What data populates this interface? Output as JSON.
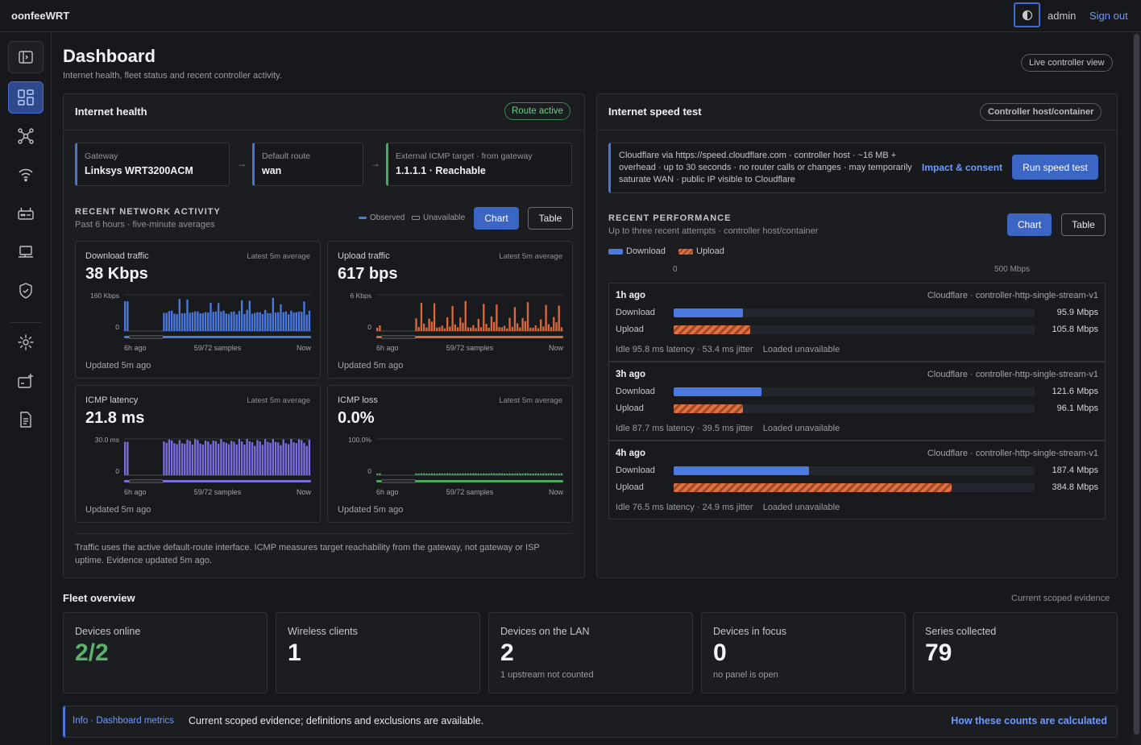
{
  "app": {
    "brand": "oonfeeWRT",
    "user": "admin",
    "sign_out": "Sign out"
  },
  "sidebar": {
    "items": [
      {
        "icon": "sidebar-collapse-icon"
      },
      {
        "icon": "dashboard-icon",
        "active": true
      },
      {
        "icon": "topology-icon"
      },
      {
        "icon": "wifi-icon"
      },
      {
        "icon": "router-icon"
      },
      {
        "icon": "laptop-icon"
      },
      {
        "icon": "shield-icon"
      },
      {
        "icon": "settings-icon"
      },
      {
        "icon": "add-device-icon"
      },
      {
        "icon": "document-icon"
      }
    ]
  },
  "page": {
    "title": "Dashboard",
    "subtitle": "Internet health, fleet status and recent controller activity.",
    "live_view": "Live controller view"
  },
  "health": {
    "title": "Internet health",
    "status": "Route active",
    "chips": [
      {
        "label": "Gateway",
        "value": "Linksys WRT3200ACM"
      },
      {
        "label": "Default route",
        "value": "wan"
      },
      {
        "label": "External ICMP target · from gateway",
        "value": "1.1.1.1 · Reachable"
      }
    ],
    "activity_title": "RECENT NETWORK ACTIVITY",
    "activity_sub": "Past 6 hours · five-minute averages",
    "legend_observed": "Observed",
    "legend_unavailable": "Unavailable",
    "chart_btn": "Chart",
    "table_btn": "Table",
    "footnote": "Traffic uses the active default-route interface. ICMP measures target reachability from the gateway, not gateway or ISP uptime. Evidence updated 5m ago."
  },
  "metric_cards": [
    {
      "title": "Download traffic",
      "right": "Latest 5m average",
      "value": "38 Kbps",
      "ymax": "160 Kbps",
      "ymin": "0",
      "x_left": "6h ago",
      "x_mid": "59/72 samples",
      "x_right": "Now",
      "updated": "Updated 5m ago",
      "color": "#4a7ae0"
    },
    {
      "title": "Upload traffic",
      "right": "Latest 5m average",
      "value": "617 bps",
      "ymax": "6 Kbps",
      "ymin": "0",
      "x_left": "6h ago",
      "x_mid": "59/72 samples",
      "x_right": "Now",
      "updated": "Updated 5m ago",
      "color": "#d9693a"
    },
    {
      "title": "ICMP latency",
      "right": "Latest 5m average",
      "value": "21.8 ms",
      "ymax": "30.0 ms",
      "ymin": "0",
      "x_left": "6h ago",
      "x_mid": "59/72 samples",
      "x_right": "Now",
      "updated": "Updated 5m ago",
      "color": "#7b6ee0"
    },
    {
      "title": "ICMP loss",
      "right": "Latest 5m average",
      "value": "0.0%",
      "ymax": "100.0%",
      "ymin": "0",
      "x_left": "6h ago",
      "x_mid": "59/72 samples",
      "x_right": "Now",
      "updated": "Updated 5m ago",
      "color": "#4fa860"
    }
  ],
  "speedtest": {
    "title": "Internet speed test",
    "host_pill": "Controller host/container",
    "info": "Cloudflare via https://speed.cloudflare.com · controller host · ~16 MB + overhead · up to 30 seconds · no router calls or changes · may temporarily saturate WAN · public IP visible to Cloudflare",
    "impact_link": "Impact & consent",
    "run_btn": "Run speed test",
    "perf_title": "RECENT PERFORMANCE",
    "perf_sub": "Up to three recent attempts · controller host/container",
    "chart_btn": "Chart",
    "table_btn": "Table",
    "legend_download": "Download",
    "legend_upload": "Upload",
    "scale_min": "0",
    "scale_max": "500 Mbps",
    "download_label": "Download",
    "upload_label": "Upload",
    "results": [
      {
        "when": "1h ago",
        "provider": "Cloudflare · controller-http-single-stream-v1",
        "download": "95.9 Mbps",
        "upload": "105.8 Mbps",
        "download_value": 95.9,
        "upload_value": 105.8,
        "meta": "Idle 95.8 ms latency · 53.4 ms jitter    Loaded unavailable"
      },
      {
        "when": "3h ago",
        "provider": "Cloudflare · controller-http-single-stream-v1",
        "download": "121.6 Mbps",
        "upload": "96.1 Mbps",
        "download_value": 121.6,
        "upload_value": 96.1,
        "meta": "Idle 87.7 ms latency · 39.5 ms jitter    Loaded unavailable"
      },
      {
        "when": "4h ago",
        "provider": "Cloudflare · controller-http-single-stream-v1",
        "download": "187.4 Mbps",
        "upload": "384.8 Mbps",
        "download_value": 187.4,
        "upload_value": 384.8,
        "meta": "Idle 76.5 ms latency · 24.9 ms jitter    Loaded unavailable"
      }
    ],
    "scale_max_value": 500
  },
  "fleet": {
    "title": "Fleet overview",
    "right": "Current scoped evidence",
    "cards": [
      {
        "title": "Devices online",
        "value": "2/2",
        "sub": "",
        "color": "#5cb06c"
      },
      {
        "title": "Wireless clients",
        "value": "1",
        "sub": ""
      },
      {
        "title": "Devices on the LAN",
        "value": "2",
        "sub": "1 upstream not counted"
      },
      {
        "title": "Devices in focus",
        "value": "0",
        "sub": "no panel is open"
      },
      {
        "title": "Series collected",
        "value": "79",
        "sub": ""
      }
    ]
  },
  "banner": {
    "tag": "Info · Dashboard metrics",
    "text": "Current scoped evidence; definitions and exclusions are available.",
    "link": "How these counts are calculated"
  }
}
